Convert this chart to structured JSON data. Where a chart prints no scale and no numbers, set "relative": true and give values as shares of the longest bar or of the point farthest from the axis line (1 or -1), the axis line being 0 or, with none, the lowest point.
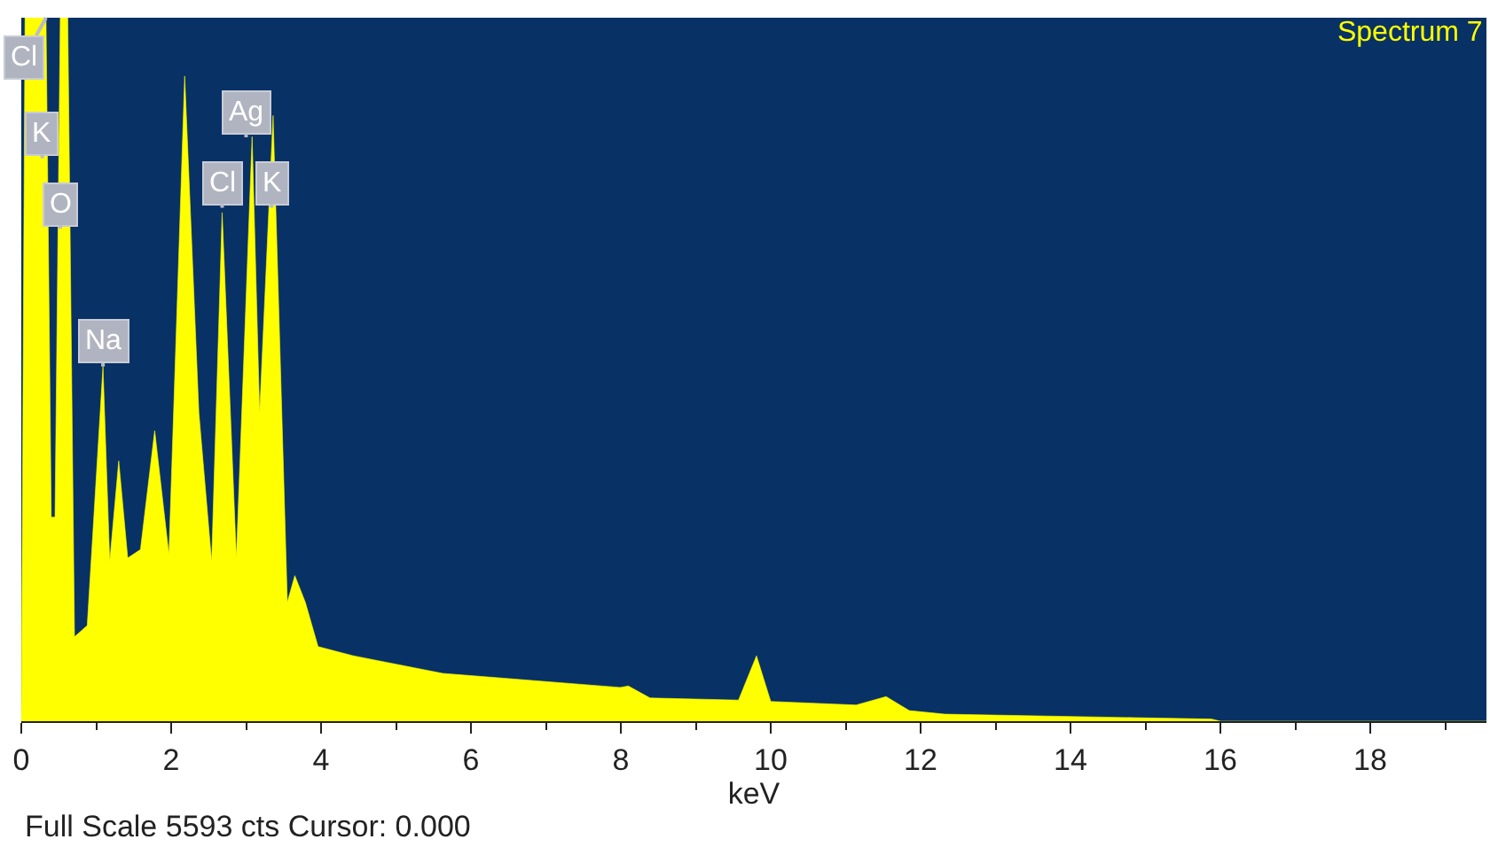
{
  "chart_data": {
    "type": "area",
    "relative": true,
    "title": "Spectrum 7",
    "xlabel": "keV",
    "xlim": [
      0,
      19.55
    ],
    "xticks": [
      0,
      2,
      4,
      6,
      8,
      10,
      12,
      14,
      16,
      18
    ],
    "series": [
      {
        "color": "#ffff00",
        "x": [
          0,
          0.05,
          0.33,
          0.4,
          0.45,
          0.52,
          0.62,
          0.71,
          0.88,
          1.09,
          1.18,
          1.3,
          1.42,
          1.59,
          1.78,
          1.97,
          2.18,
          2.37,
          2.54,
          2.68,
          2.87,
          3.08,
          3.18,
          3.36,
          3.55,
          3.65,
          3.79,
          3.96,
          4.43,
          5.62,
          7.99,
          8.1,
          8.39,
          9.57,
          9.81,
          10.0,
          11.14,
          11.54,
          11.85,
          12.32,
          14.86,
          15.88,
          16.0,
          19.55
        ],
        "values": [
          0,
          1,
          1,
          0.29,
          0.29,
          1,
          1,
          0.12,
          0.136,
          0.504,
          0.227,
          0.37,
          0.232,
          0.244,
          0.413,
          0.237,
          0.917,
          0.438,
          0.227,
          0.723,
          0.232,
          0.831,
          0.438,
          0.861,
          0.169,
          0.207,
          0.169,
          0.106,
          0.093,
          0.068,
          0.048,
          0.05,
          0.033,
          0.03,
          0.093,
          0.028,
          0.023,
          0.035,
          0.015,
          0.01,
          0.005,
          0.003,
          0,
          0
        ]
      }
    ],
    "annotations": [
      {
        "text": "Cl",
        "x": 0.33,
        "y": 1
      },
      {
        "text": "K",
        "x": 0.28,
        "y": 0.8
      },
      {
        "text": "O",
        "x": 0.52,
        "y": 0.7
      },
      {
        "text": "Na",
        "x": 1.09,
        "y": 0.504
      },
      {
        "text": "Ag",
        "x": 3.0,
        "y": 0.83
      },
      {
        "text": "Cl",
        "x": 2.68,
        "y": 0.73
      },
      {
        "text": "K",
        "x": 3.34,
        "y": 0.73
      },
      "Full Scale 5593 cts Cursor: 0.000"
    ]
  }
}
